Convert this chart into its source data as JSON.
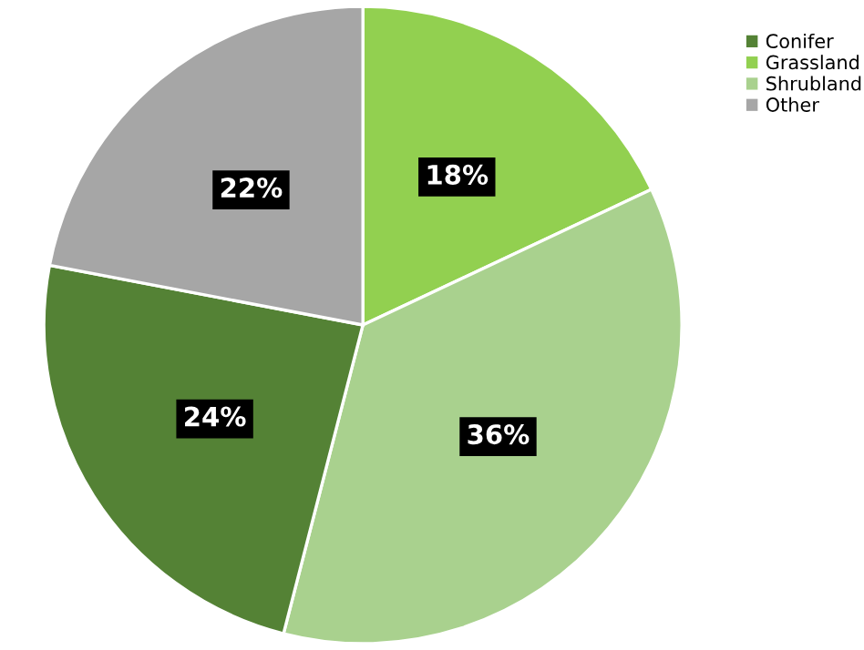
{
  "chart_data": {
    "type": "pie",
    "categories": [
      "Conifer",
      "Grassland",
      "Shrubland",
      "Other"
    ],
    "values": [
      24,
      18,
      36,
      22
    ],
    "colors": [
      "#548235",
      "#92d050",
      "#a9d18e",
      "#a6a6a6"
    ],
    "value_labels": [
      "24%",
      "18%",
      "36%",
      "22%"
    ],
    "legend": "top right"
  }
}
